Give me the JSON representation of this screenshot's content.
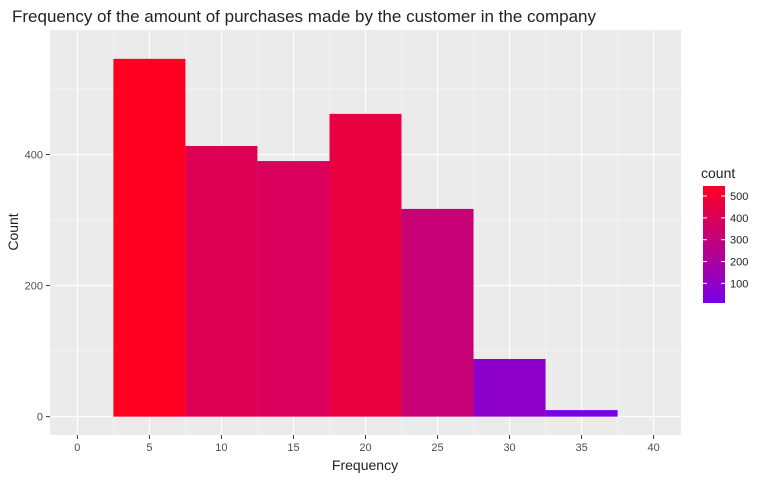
{
  "chart_data": {
    "type": "bar",
    "title": "Frequency of the amount of purchases made by the customer in the company",
    "xlabel": "Frequency",
    "ylabel": "Count",
    "xlim": [
      -1.9,
      41.9
    ],
    "ylim": [
      -28,
      590
    ],
    "x_ticks": [
      0,
      5,
      10,
      15,
      20,
      25,
      30,
      35,
      40
    ],
    "y_ticks": [
      0,
      200,
      400
    ],
    "bins": [
      {
        "x_start": 2.5,
        "x_end": 7.5,
        "value": 546
      },
      {
        "x_start": 7.5,
        "x_end": 12.5,
        "value": 413
      },
      {
        "x_start": 12.5,
        "x_end": 17.5,
        "value": 390
      },
      {
        "x_start": 17.5,
        "x_end": 22.5,
        "value": 462
      },
      {
        "x_start": 22.5,
        "x_end": 27.5,
        "value": 317
      },
      {
        "x_start": 27.5,
        "x_end": 32.5,
        "value": 88
      },
      {
        "x_start": 32.5,
        "x_end": 37.5,
        "value": 10
      }
    ],
    "grid": true,
    "background": "#ebebeb",
    "legend": {
      "title": "count",
      "position": "right",
      "breaks": [
        100,
        200,
        300,
        400,
        500
      ],
      "low_color": "#7b00e6",
      "high_color": "#ff0022",
      "range": [
        10,
        546
      ]
    }
  }
}
